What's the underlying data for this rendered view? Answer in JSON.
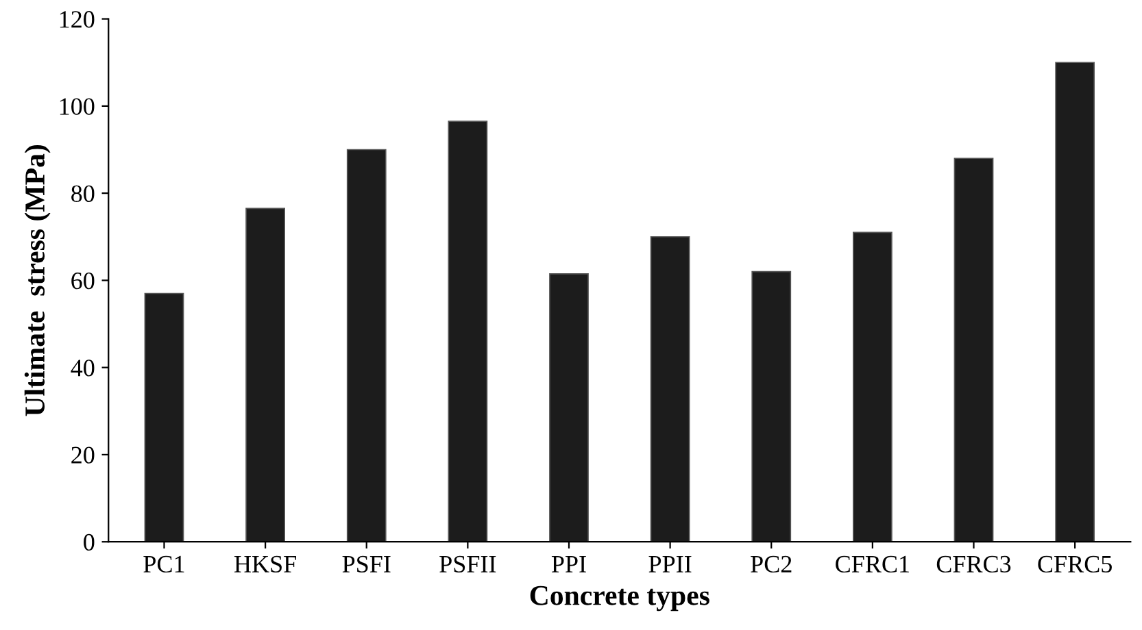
{
  "chart_data": {
    "type": "bar",
    "xlabel": "Concrete types",
    "ylabel": "Ultimate  stress (MPa)",
    "categories": [
      "PC1",
      "HKSF",
      "PSFI",
      "PSFII",
      "PPI",
      "PPII",
      "PC2",
      "CFRC1",
      "CFRC3",
      "CFRC5"
    ],
    "values": [
      57,
      76.5,
      90,
      96.5,
      61.5,
      70,
      62,
      71,
      88,
      110
    ],
    "color": "#1c1c1c",
    "ylim": [
      0,
      120
    ],
    "yticks": [
      0,
      20,
      40,
      60,
      80,
      100,
      120
    ],
    "grid": false
  }
}
